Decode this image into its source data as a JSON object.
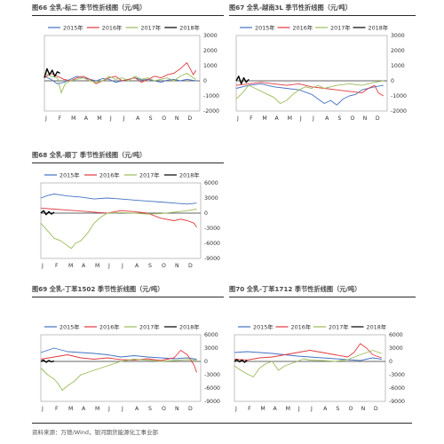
{
  "colors": {
    "s2015": "#4472c4",
    "s2016": "#e0393e",
    "s2017": "#9bbb59",
    "s2018": "#000000",
    "axis": "#555555"
  },
  "source": "资料来源：万德/Wind，银河期货能源化工事业部",
  "chart_data": [
    {
      "type": "line",
      "title": "图66 全乳-标二 季节性折线图（元/吨）",
      "x_labels": [
        "J",
        "F",
        "M",
        "A",
        "M",
        "J",
        "J",
        "A",
        "S",
        "O",
        "N",
        "D"
      ],
      "ylim": [
        -2000,
        3000
      ],
      "yticks": [
        3000,
        2000,
        1000,
        0,
        -1000,
        -2000
      ],
      "legend": "top",
      "series": [
        {
          "name": "2015年",
          "key": "s2015",
          "x": [
            0,
            0.5,
            1,
            1.5,
            2,
            2.5,
            3,
            3.5,
            4,
            4.5,
            5,
            5.5,
            6,
            6.5,
            7,
            7.5,
            8,
            8.5,
            9,
            9.5,
            10,
            10.5,
            11,
            11.7
          ],
          "y": [
            300,
            100,
            -200,
            -100,
            100,
            300,
            200,
            100,
            0,
            150,
            100,
            -100,
            0,
            100,
            200,
            50,
            100,
            0,
            -100,
            50,
            100,
            0,
            100,
            0
          ]
        },
        {
          "name": "2016年",
          "key": "s2016",
          "x": [
            0,
            0.5,
            1,
            1.5,
            2,
            2.5,
            3,
            3.5,
            4,
            4.5,
            5,
            5.5,
            6,
            6.5,
            7,
            7.5,
            8,
            8.5,
            9,
            9.5,
            10,
            10.5,
            11,
            11.2,
            11.5,
            11.7
          ],
          "y": [
            200,
            500,
            300,
            100,
            0,
            200,
            300,
            100,
            -200,
            0,
            200,
            300,
            0,
            100,
            200,
            -100,
            100,
            300,
            200,
            400,
            500,
            800,
            1200,
            900,
            400,
            700
          ]
        },
        {
          "name": "2017年",
          "key": "s2017",
          "x": [
            0,
            0.5,
            1,
            1.3,
            1.6,
            2,
            2.5,
            3,
            3.5,
            4,
            4.5,
            5,
            5.5,
            6,
            6.5,
            7,
            7.5,
            8,
            8.5,
            9,
            9.5,
            10,
            10.5,
            11,
            11.5,
            11.7
          ],
          "y": [
            500,
            300,
            200,
            -800,
            -200,
            0,
            100,
            200,
            0,
            -100,
            0,
            300,
            100,
            200,
            0,
            300,
            100,
            200,
            0,
            100,
            200,
            0,
            300,
            500,
            200,
            100
          ]
        },
        {
          "name": "2018年",
          "key": "s2018",
          "x": [
            0,
            0.2,
            0.4,
            0.6,
            0.8,
            1,
            1.2
          ],
          "y": [
            200,
            800,
            400,
            700,
            300,
            600,
            500
          ]
        }
      ]
    },
    {
      "type": "line",
      "title": "图67 全乳-越南3L 季节性折线图（元/吨）",
      "x_labels": [
        "J",
        "F",
        "M",
        "A",
        "M",
        "J",
        "J",
        "A",
        "S",
        "O",
        "N",
        "D"
      ],
      "ylim": [
        -2000,
        3000
      ],
      "yticks": [
        3000,
        2000,
        1000,
        0,
        -1000,
        -2000
      ],
      "legend": "top",
      "series": [
        {
          "name": "2015年",
          "key": "s2015",
          "x": [
            0,
            1,
            2,
            3,
            4,
            5,
            6,
            6.5,
            7,
            7.5,
            8,
            8.5,
            9,
            9.5,
            10,
            10.5,
            11,
            11.7
          ],
          "y": [
            -500,
            -300,
            -200,
            -400,
            -500,
            -600,
            -900,
            -1200,
            -1500,
            -1300,
            -1600,
            -1200,
            -1000,
            -900,
            -600,
            -500,
            -400,
            -300
          ]
        },
        {
          "name": "2016年",
          "key": "s2016",
          "x": [
            0,
            1,
            2,
            3,
            4,
            5,
            6,
            7,
            8,
            9,
            10,
            10.5,
            11,
            11.3,
            11.7
          ],
          "y": [
            -300,
            -200,
            -100,
            -200,
            -300,
            -200,
            -400,
            -500,
            -600,
            -700,
            -800,
            -500,
            -300,
            -800,
            -1000
          ]
        },
        {
          "name": "2017年",
          "key": "s2017",
          "x": [
            0,
            0.5,
            1,
            1.5,
            2,
            2.5,
            3,
            3.5,
            4,
            4.5,
            5,
            5.5,
            6,
            6.5,
            7,
            7.5,
            8,
            9,
            10,
            11,
            11.7
          ],
          "y": [
            -1200,
            -800,
            -300,
            -500,
            -700,
            -900,
            -1100,
            -1500,
            -1300,
            -900,
            -600,
            -400,
            -500,
            -300,
            -500,
            -400,
            -300,
            -200,
            -300,
            -100,
            0
          ]
        },
        {
          "name": "2018年",
          "key": "s2018",
          "x": [
            0,
            0.2,
            0.4,
            0.6,
            0.8,
            1
          ],
          "y": [
            0,
            300,
            -200,
            200,
            -100,
            100
          ]
        }
      ]
    },
    {
      "type": "line",
      "title": "图68 全乳-顺丁 季节性折线图（元/吨）",
      "x_labels": [
        "J",
        "F",
        "M",
        "A",
        "M",
        "J",
        "J",
        "A",
        "S",
        "O",
        "N",
        "D"
      ],
      "ylim": [
        -9000,
        6000
      ],
      "yticks": [
        6000,
        3000,
        0,
        -3000,
        -6000,
        -9000
      ],
      "legend": "top",
      "series": [
        {
          "name": "2015年",
          "key": "s2015",
          "x": [
            0,
            0.5,
            1,
            1.5,
            2,
            3,
            4,
            5,
            6,
            7,
            8,
            9,
            10,
            11,
            11.7
          ],
          "y": [
            3000,
            3500,
            3800,
            3600,
            3400,
            3200,
            2800,
            3000,
            2800,
            2600,
            2400,
            2200,
            2000,
            1800,
            2000
          ]
        },
        {
          "name": "2016年",
          "key": "s2016",
          "x": [
            0,
            1,
            2,
            3,
            4,
            5,
            6,
            7,
            8,
            9,
            10,
            10.5,
            11,
            11.5,
            11.7
          ],
          "y": [
            1000,
            800,
            600,
            400,
            200,
            0,
            500,
            300,
            0,
            -1000,
            -1500,
            -1200,
            -1500,
            -2000,
            -2800
          ]
        },
        {
          "name": "2017年",
          "key": "s2017",
          "x": [
            0,
            0.5,
            1,
            1.5,
            2,
            2.3,
            2.6,
            3,
            3.5,
            4,
            4.5,
            5,
            6,
            7,
            8,
            9,
            10,
            11,
            11.7
          ],
          "y": [
            -2000,
            -3500,
            -5000,
            -5500,
            -6500,
            -7000,
            -6000,
            -5500,
            -4000,
            -2000,
            -800,
            0,
            100,
            0,
            -200,
            -100,
            200,
            500,
            800
          ]
        },
        {
          "name": "2018年",
          "key": "s2018",
          "x": [
            0,
            0.2,
            0.4,
            0.6,
            0.8,
            1
          ],
          "y": [
            0,
            500,
            -300,
            300,
            -200,
            200
          ]
        }
      ]
    },
    {
      "type": "line",
      "title": "图69 全乳-丁苯1502 季节性折线图（元/吨）",
      "x_labels": [
        "J",
        "F",
        "M",
        "A",
        "M",
        "J",
        "J",
        "A",
        "S",
        "O",
        "N",
        "D"
      ],
      "ylim": [
        -9000,
        6000
      ],
      "yticks": [
        6000,
        3000,
        0,
        -3000,
        -6000,
        -9000
      ],
      "legend": "top",
      "series": [
        {
          "name": "2015年",
          "key": "s2015",
          "x": [
            0,
            0.5,
            1,
            1.5,
            2,
            3,
            4,
            5,
            6,
            7,
            8,
            9,
            10,
            11,
            11.7
          ],
          "y": [
            2000,
            2500,
            3000,
            2600,
            2200,
            2000,
            1800,
            1500,
            1000,
            1300,
            1000,
            800,
            600,
            800,
            500
          ]
        },
        {
          "name": "2016年",
          "key": "s2016",
          "x": [
            0,
            1,
            2,
            3,
            4,
            5,
            6,
            7,
            8,
            9,
            10,
            10.5,
            11,
            11.5,
            11.7
          ],
          "y": [
            500,
            1000,
            1500,
            800,
            500,
            800,
            400,
            300,
            600,
            200,
            800,
            2500,
            1500,
            -800,
            -2500
          ]
        },
        {
          "name": "2017年",
          "key": "s2017",
          "x": [
            0,
            0.5,
            1,
            1.3,
            1.6,
            2,
            2.5,
            3,
            3.5,
            4,
            4.5,
            5,
            6,
            7,
            8,
            9,
            10,
            11,
            11.7
          ],
          "y": [
            -1500,
            -3000,
            -4000,
            -5000,
            -6500,
            -5500,
            -4500,
            -3000,
            -2500,
            -2000,
            -1500,
            -1000,
            0,
            500,
            300,
            0,
            200,
            400,
            300
          ]
        },
        {
          "name": "2018年",
          "key": "s2018",
          "x": [
            0,
            0.2,
            0.4,
            0.6,
            0.8,
            1
          ],
          "y": [
            0,
            300,
            -200,
            200,
            -100,
            100
          ]
        }
      ]
    },
    {
      "type": "line",
      "title": "图70 全乳-丁苯1712 季节性折线图（元/吨）",
      "x_labels": [
        "J",
        "F",
        "M",
        "A",
        "M",
        "J",
        "J",
        "A",
        "S",
        "O",
        "N",
        "D"
      ],
      "ylim": [
        -9000,
        6000
      ],
      "yticks": [
        6000,
        3000,
        0,
        -3000,
        -6000,
        -9000
      ],
      "legend": "top",
      "series": [
        {
          "name": "2015年",
          "key": "s2015",
          "x": [
            0,
            1,
            2,
            3,
            4,
            5,
            6,
            7,
            8,
            9,
            10,
            11,
            11.7
          ],
          "y": [
            2000,
            2200,
            2000,
            1800,
            1500,
            1200,
            1000,
            800,
            600,
            400,
            200,
            800,
            500
          ]
        },
        {
          "name": "2016年",
          "key": "s2016",
          "x": [
            0,
            1,
            2,
            3,
            4,
            5,
            6,
            7,
            8,
            9,
            9.5,
            10,
            10.5,
            11,
            11.7
          ],
          "y": [
            500,
            300,
            800,
            1000,
            1500,
            2000,
            2500,
            2000,
            1500,
            1000,
            2000,
            4000,
            3000,
            1500,
            800
          ]
        },
        {
          "name": "2017年",
          "key": "s2017",
          "x": [
            0,
            0.5,
            1,
            1.5,
            2,
            2.5,
            3,
            3.5,
            4,
            4.5,
            5,
            5.5,
            6,
            7,
            8,
            9,
            10,
            11,
            11.7
          ],
          "y": [
            -1000,
            -2000,
            -2800,
            -3500,
            -1500,
            -500,
            0,
            -2000,
            -1000,
            -500,
            0,
            600,
            300,
            200,
            0,
            400,
            1500,
            2500,
            1800
          ]
        },
        {
          "name": "2018年",
          "key": "s2018",
          "x": [
            0,
            0.2,
            0.4,
            0.6,
            0.8,
            1
          ],
          "y": [
            0,
            400,
            -100,
            300,
            -200,
            200
          ]
        }
      ]
    }
  ]
}
